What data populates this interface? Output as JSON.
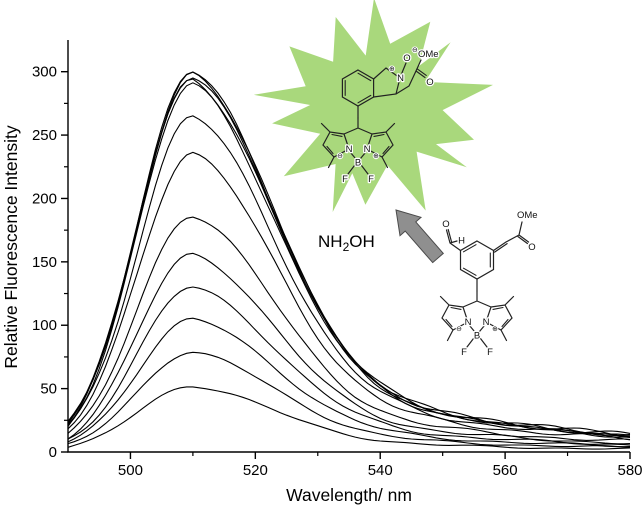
{
  "chart_data": {
    "type": "line",
    "title": "",
    "xlabel": "Wavelength/ nm",
    "ylabel": "Relative Fluorescence Intensity",
    "xlim": [
      490,
      580
    ],
    "ylim": [
      0,
      325
    ],
    "xticks": [
      500,
      520,
      540,
      560,
      580
    ],
    "yticks": [
      0,
      50,
      100,
      150,
      200,
      250,
      300
    ],
    "x_minor_step": 10,
    "y_minor_step": 25,
    "grid": false,
    "legend": "none",
    "line_color": "#000000",
    "peak_wavelength_nm": 510,
    "series_peaks": [
      52,
      79,
      105,
      130,
      156,
      187,
      236,
      265,
      290,
      294,
      297,
      299,
      300
    ]
  },
  "annotations": {
    "reagent": {
      "prefix": "NH",
      "sub": "2",
      "suffix": "OH"
    },
    "starburst_color": "#a9d87c",
    "arrow_fill": "#8f8f8f",
    "arrow_stroke": "#4a4a4a"
  },
  "molecules": {
    "product": {
      "oxide_o": "O",
      "oxide_minus": "⊖",
      "n_label": "N",
      "n_plus": "⊕",
      "ome": "OMe",
      "carbonyl_o": "O",
      "bodipy": {
        "n_left": "N",
        "n_right": "N",
        "b": "B",
        "f1": "F",
        "f2": "F",
        "minus": "⊖",
        "plus": "⊕"
      }
    },
    "reactant": {
      "cho_o": "O",
      "cho_h": "H",
      "ome": "OMe",
      "carbonyl_o": "O",
      "bodipy": {
        "n_left": "N",
        "n_right": "N",
        "b": "B",
        "f1": "F",
        "f2": "F",
        "minus": "⊖",
        "plus": "⊕"
      }
    }
  }
}
